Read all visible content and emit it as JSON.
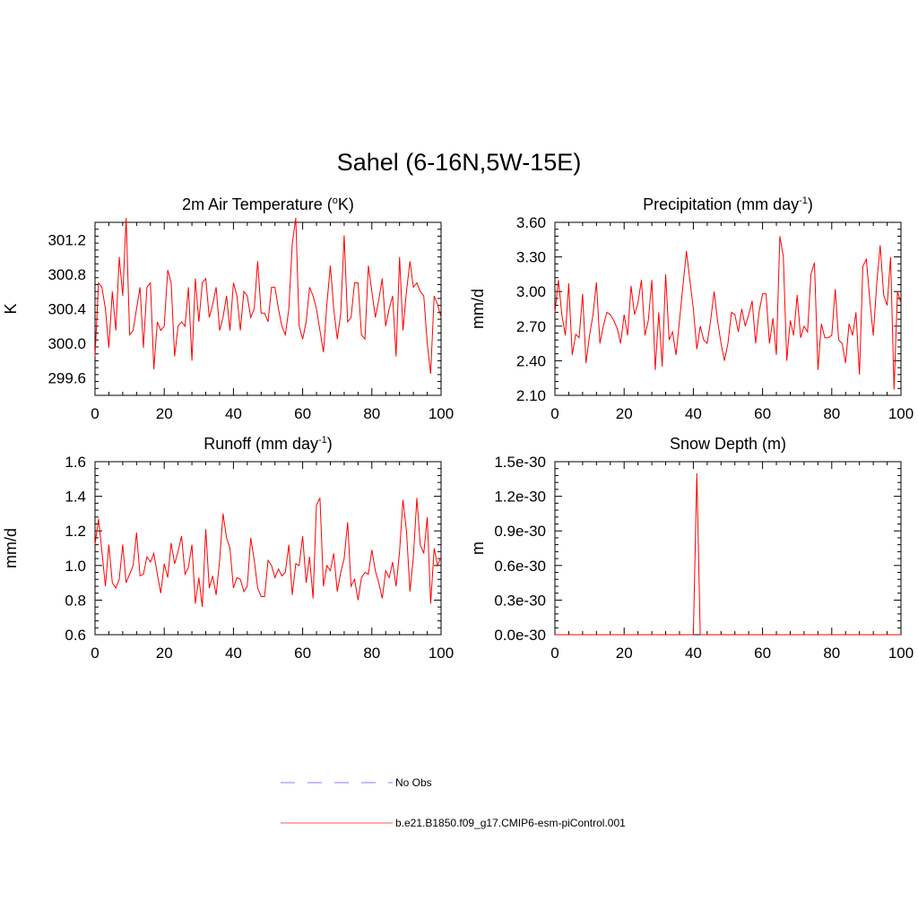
{
  "title": "Sahel (6-16N,5W-15E)",
  "legend": [
    {
      "label": "No Obs",
      "color": "#9999ff",
      "style": "dashed"
    },
    {
      "label": "b.e21.B1850.f09_g17.CMIP6-esm-piControl.001",
      "color": "#ff7777",
      "style": "solid"
    }
  ],
  "chart_data": [
    {
      "type": "line",
      "title": "2m Air Temperature (",
      "title_sup": "o",
      "title_after": "K)",
      "ylabel": "K",
      "xlim": [
        0,
        100
      ],
      "ylim": [
        299.4,
        301.4
      ],
      "xticks": [
        0,
        20,
        40,
        60,
        80,
        100
      ],
      "yticks": [
        299.6,
        300.0,
        300.4,
        300.8,
        301.2
      ],
      "ytick_labels": [
        "299.6",
        "300.0",
        "300.4",
        "300.8",
        "301.2"
      ],
      "series": [
        {
          "color": "#ff0000",
          "values": [
            299.85,
            300.7,
            300.65,
            300.4,
            299.95,
            300.6,
            300.15,
            301.0,
            300.55,
            301.45,
            300.1,
            300.15,
            300.4,
            300.65,
            299.95,
            300.65,
            300.7,
            299.7,
            300.25,
            300.15,
            300.2,
            300.85,
            300.7,
            299.85,
            300.2,
            300.25,
            300.2,
            300.65,
            299.8,
            300.75,
            300.25,
            300.7,
            300.75,
            300.3,
            300.45,
            300.65,
            300.15,
            300.3,
            300.55,
            300.15,
            300.7,
            300.55,
            300.15,
            300.6,
            300.55,
            300.3,
            300.4,
            300.95,
            300.35,
            300.35,
            300.25,
            300.65,
            300.65,
            300.4,
            300.2,
            300.1,
            300.4,
            301.15,
            301.45,
            300.2,
            300.05,
            300.25,
            300.65,
            300.55,
            300.4,
            300.15,
            299.9,
            300.45,
            300.9,
            300.4,
            300.05,
            300.35,
            301.25,
            300.25,
            300.3,
            300.7,
            300.7,
            300.1,
            300.05,
            300.9,
            300.6,
            300.3,
            300.5,
            300.75,
            300.2,
            300.4,
            300.55,
            299.85,
            301.0,
            300.15,
            300.6,
            300.95,
            300.65,
            300.7,
            300.6,
            300.55,
            300.0,
            299.65,
            300.55,
            300.45,
            300.3
          ]
        }
      ]
    },
    {
      "type": "line",
      "title": "Precipitation (mm day",
      "title_sup": "-1",
      "title_after": ")",
      "ylabel": "mm/d",
      "xlim": [
        0,
        100
      ],
      "ylim": [
        2.1,
        3.6
      ],
      "xticks": [
        0,
        20,
        40,
        60,
        80,
        100
      ],
      "yticks": [
        2.1,
        2.4,
        2.7,
        3.0,
        3.3,
        3.6
      ],
      "ytick_labels": [
        "2.10",
        "2.40",
        "2.70",
        "3.00",
        "3.30",
        "3.60"
      ],
      "series": [
        {
          "color": "#ff0000",
          "values": [
            2.82,
            3.1,
            2.8,
            2.62,
            3.07,
            2.45,
            2.63,
            2.6,
            2.98,
            2.38,
            2.62,
            2.8,
            3.08,
            2.55,
            2.7,
            2.82,
            2.8,
            2.75,
            2.68,
            2.55,
            2.8,
            2.62,
            3.05,
            2.8,
            2.9,
            3.1,
            2.62,
            2.75,
            3.1,
            2.32,
            2.82,
            2.35,
            3.15,
            2.58,
            2.65,
            2.45,
            2.75,
            3.05,
            3.35,
            3.1,
            2.85,
            2.5,
            2.7,
            2.58,
            2.55,
            2.75,
            3.0,
            2.75,
            2.55,
            2.4,
            2.55,
            2.82,
            2.8,
            2.65,
            2.85,
            2.7,
            2.8,
            2.92,
            2.55,
            2.82,
            2.98,
            2.98,
            2.55,
            2.77,
            2.45,
            3.48,
            3.3,
            2.4,
            2.75,
            2.62,
            2.97,
            2.6,
            2.7,
            2.65,
            3.15,
            3.25,
            2.32,
            2.72,
            2.6,
            2.6,
            2.62,
            3.02,
            2.58,
            2.55,
            2.38,
            2.72,
            2.62,
            2.82,
            2.28,
            3.22,
            3.28,
            2.92,
            2.62,
            3.07,
            3.4,
            2.97,
            2.88,
            3.3,
            2.15,
            3.0,
            2.9
          ]
        }
      ]
    },
    {
      "type": "line",
      "title": "Runoff (mm day",
      "title_sup": "-1",
      "title_after": ")",
      "ylabel": "mm/d",
      "xlim": [
        0,
        100
      ],
      "ylim": [
        0.6,
        1.6
      ],
      "xticks": [
        0,
        20,
        40,
        60,
        80,
        100
      ],
      "yticks": [
        0.6,
        0.8,
        1.0,
        1.2,
        1.4,
        1.6
      ],
      "ytick_labels": [
        "0.6",
        "0.8",
        "1.0",
        "1.2",
        "1.4",
        "1.6"
      ],
      "series": [
        {
          "color": "#ff0000",
          "values": [
            1.12,
            1.27,
            1.08,
            0.88,
            1.12,
            0.9,
            0.87,
            0.92,
            1.12,
            0.9,
            0.95,
            1.0,
            1.19,
            0.94,
            0.95,
            1.05,
            1.02,
            1.07,
            0.95,
            0.84,
            1.01,
            0.93,
            1.13,
            1.01,
            1.08,
            1.17,
            0.95,
            0.99,
            1.12,
            0.78,
            0.93,
            0.76,
            1.21,
            0.87,
            0.94,
            0.83,
            1.03,
            1.3,
            1.16,
            1.1,
            0.87,
            0.93,
            0.92,
            0.85,
            0.88,
            1.16,
            1.03,
            0.87,
            0.82,
            0.82,
            1.03,
            1.0,
            0.93,
            0.98,
            0.94,
            0.96,
            1.12,
            0.83,
            1.01,
            1.0,
            1.17,
            0.9,
            1.05,
            0.81,
            1.35,
            1.39,
            0.88,
            1.0,
            0.97,
            1.07,
            0.85,
            0.96,
            1.04,
            1.25,
            0.88,
            0.92,
            0.8,
            0.93,
            0.96,
            0.95,
            1.09,
            0.97,
            0.9,
            0.81,
            0.97,
            0.93,
            1.02,
            0.88,
            1.08,
            1.38,
            1.2,
            0.85,
            1.05,
            1.39,
            1.12,
            1.07,
            1.28,
            0.78,
            1.1,
            1.0,
            1.05
          ]
        }
      ]
    },
    {
      "type": "line",
      "title": "Snow Depth (m)",
      "title_sup": "",
      "title_after": "",
      "ylabel": "m",
      "xlim": [
        0,
        100
      ],
      "ylim": [
        0,
        1.5
      ],
      "xticks": [
        0,
        20,
        40,
        60,
        80,
        100
      ],
      "yticks": [
        0,
        0.3,
        0.6,
        0.9,
        1.2,
        1.5
      ],
      "ytick_labels": [
        "0.0e-30",
        "0.3e-30",
        "0.6e-30",
        "0.9e-30",
        "1.2e-30",
        "1.5e-30"
      ],
      "y_scale_note": "values in units of 1e-30 m",
      "series": [
        {
          "color": "#ff0000",
          "x": [
            0,
            40,
            41,
            42,
            100
          ],
          "values": [
            0,
            0,
            1.4,
            0,
            0
          ]
        }
      ]
    }
  ]
}
